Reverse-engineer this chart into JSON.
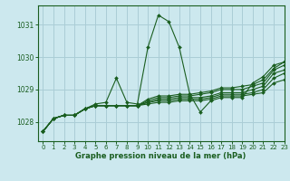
{
  "bg_color": "#cce8ee",
  "grid_color": "#aacdd6",
  "line_color": "#1a5e20",
  "title": "Graphe pression niveau de la mer (hPa)",
  "xlim": [
    -0.5,
    23
  ],
  "ylim": [
    1027.4,
    1031.6
  ],
  "yticks": [
    1028,
    1029,
    1030,
    1031
  ],
  "xticks": [
    0,
    1,
    2,
    3,
    4,
    5,
    6,
    7,
    8,
    9,
    10,
    11,
    12,
    13,
    14,
    15,
    16,
    17,
    18,
    19,
    20,
    21,
    22,
    23
  ],
  "series": [
    [
      1027.7,
      1028.1,
      1028.2,
      1028.2,
      1028.4,
      1028.55,
      1028.6,
      1029.35,
      1028.6,
      1028.55,
      1030.3,
      1031.3,
      1031.1,
      1030.3,
      1028.85,
      1028.3,
      1028.65,
      1028.75,
      1028.75,
      1028.75,
      1029.2,
      1029.4,
      1029.75,
      1029.85
    ],
    [
      1027.7,
      1028.1,
      1028.2,
      1028.2,
      1028.4,
      1028.5,
      1028.5,
      1028.5,
      1028.5,
      1028.5,
      1028.55,
      1028.6,
      1028.6,
      1028.65,
      1028.65,
      1028.65,
      1028.7,
      1028.8,
      1028.8,
      1028.8,
      1028.85,
      1028.9,
      1029.2,
      1029.3
    ],
    [
      1027.7,
      1028.1,
      1028.2,
      1028.2,
      1028.4,
      1028.5,
      1028.5,
      1028.5,
      1028.5,
      1028.5,
      1028.6,
      1028.65,
      1028.65,
      1028.7,
      1028.7,
      1028.7,
      1028.75,
      1028.85,
      1028.85,
      1028.85,
      1028.9,
      1029.0,
      1029.35,
      1029.5
    ],
    [
      1027.7,
      1028.1,
      1028.2,
      1028.2,
      1028.4,
      1028.5,
      1028.5,
      1028.5,
      1028.5,
      1028.5,
      1028.6,
      1028.7,
      1028.7,
      1028.75,
      1028.75,
      1028.75,
      1028.8,
      1028.9,
      1028.9,
      1028.9,
      1029.0,
      1029.1,
      1029.5,
      1029.6
    ],
    [
      1027.7,
      1028.1,
      1028.2,
      1028.2,
      1028.4,
      1028.5,
      1028.5,
      1028.5,
      1028.5,
      1028.5,
      1028.65,
      1028.75,
      1028.75,
      1028.8,
      1028.8,
      1028.85,
      1028.9,
      1029.0,
      1029.0,
      1029.0,
      1029.1,
      1029.2,
      1029.6,
      1029.75
    ],
    [
      1027.7,
      1028.1,
      1028.2,
      1028.2,
      1028.4,
      1028.5,
      1028.5,
      1028.5,
      1028.5,
      1028.5,
      1028.7,
      1028.8,
      1028.8,
      1028.85,
      1028.85,
      1028.9,
      1028.95,
      1029.05,
      1029.05,
      1029.1,
      1029.15,
      1029.3,
      1029.65,
      1029.85
    ]
  ]
}
